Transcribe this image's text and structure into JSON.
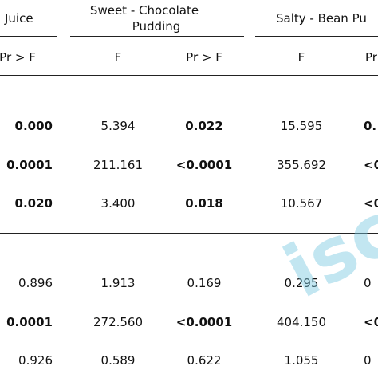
{
  "headers": {
    "col1_title": "Juice",
    "col2_title_line1": "Sweet - Chocolate",
    "col2_title_line2": "Pudding",
    "col3_title": "Salty - Bean Pu",
    "sub_c1_pr": "Pr > F",
    "sub_c2_f": "F",
    "sub_c2_pr": "Pr > F",
    "sub_c3_f": "F",
    "sub_c3_pr": "Pr"
  },
  "rows": [
    {
      "c1": "0.000",
      "c1_bold": true,
      "c2f": "5.394",
      "c2p": "0.022",
      "c2p_bold": true,
      "c3f": "15.595",
      "c3p": "0.",
      "c3p_bold": true
    },
    {
      "c1": "0.0001",
      "c1_bold": true,
      "c2f": "211.161",
      "c2p": "<0.0001",
      "c2p_bold": true,
      "c3f": "355.692",
      "c3p": "<0",
      "c3p_bold": true
    },
    {
      "c1": "0.020",
      "c1_bold": true,
      "c2f": "3.400",
      "c2p": "0.018",
      "c2p_bold": true,
      "c3f": "10.567",
      "c3p": "<0",
      "c3p_bold": true
    },
    {
      "c1": "0.896",
      "c1_bold": false,
      "c2f": "1.913",
      "c2p": "0.169",
      "c2p_bold": false,
      "c3f": "0.295",
      "c3p": "0",
      "c3p_bold": false
    },
    {
      "c1": "0.0001",
      "c1_bold": true,
      "c2f": "272.560",
      "c2p": "<0.0001",
      "c2p_bold": true,
      "c3f": "404.150",
      "c3p": "<0",
      "c3p_bold": true
    },
    {
      "c1": "0.926",
      "c1_bold": false,
      "c2f": "0.589",
      "c2p": "0.622",
      "c2p_bold": false,
      "c3f": "1.055",
      "c3p": "0",
      "c3p_bold": false
    }
  ],
  "watermark": {
    "text": "isc",
    "color": "#78c8e1"
  }
}
